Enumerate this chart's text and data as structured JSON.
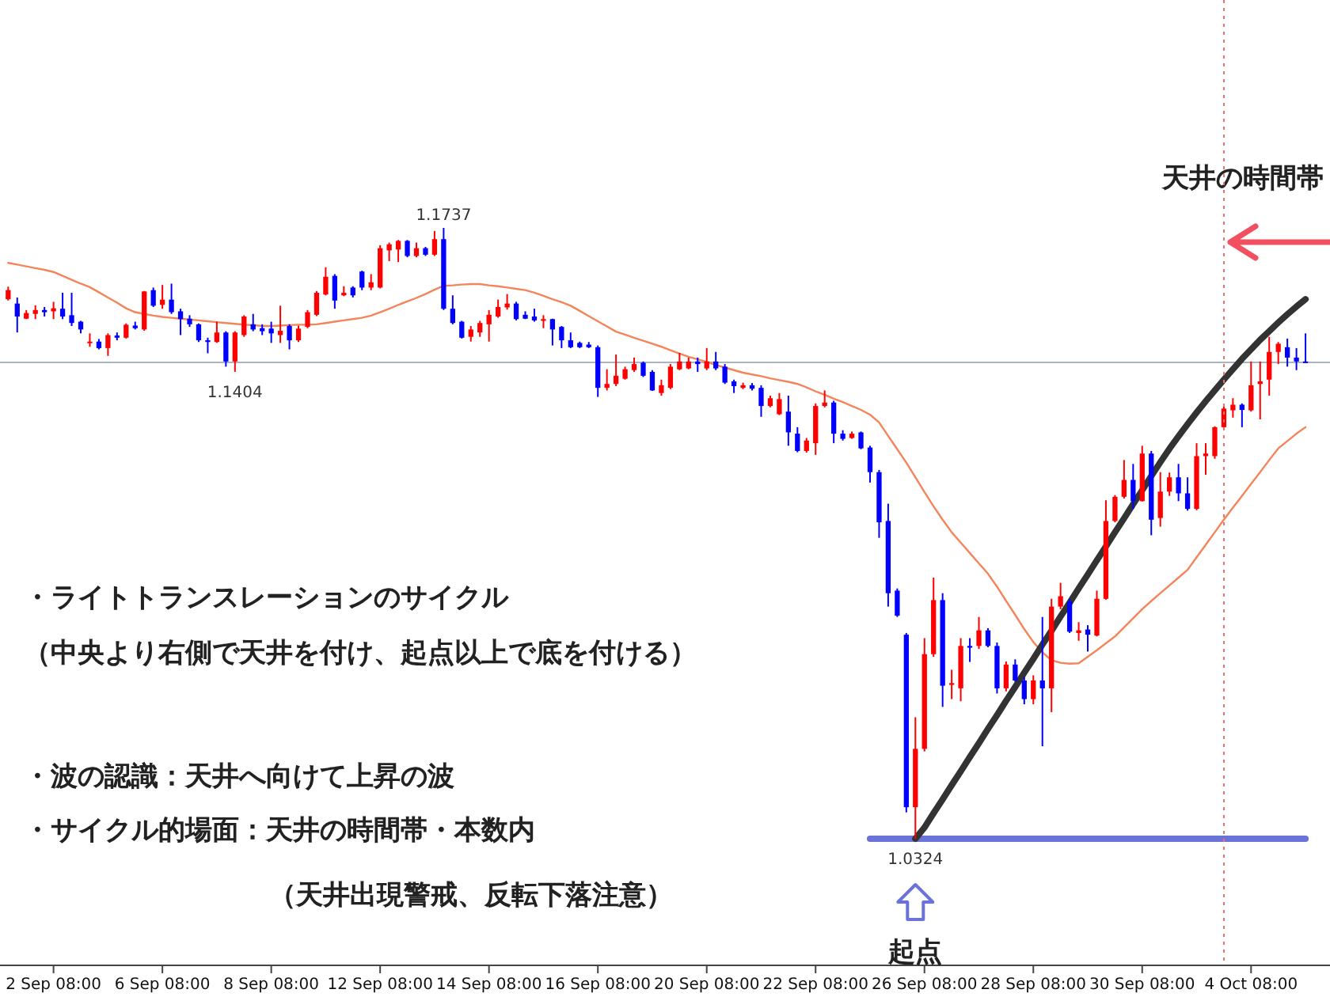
{
  "chart_data": {
    "type": "candlestick",
    "categories": [
      null,
      null,
      null,
      null,
      null,
      "2 Sep 08:00",
      null,
      null,
      null,
      null,
      null,
      null,
      null,
      null,
      null,
      null,
      null,
      "6 Sep 08:00",
      null,
      null,
      null,
      null,
      null,
      null,
      null,
      null,
      null,
      null,
      null,
      "8 Sep 08:00",
      null,
      null,
      null,
      null,
      null,
      null,
      null,
      null,
      null,
      null,
      null,
      "12 Sep 08:00",
      null,
      null,
      null,
      null,
      null,
      null,
      null,
      null,
      null,
      null,
      null,
      "14 Sep 08:00",
      null,
      null,
      null,
      null,
      null,
      null,
      null,
      null,
      null,
      null,
      null,
      "16 Sep 08:00",
      null,
      null,
      null,
      null,
      null,
      null,
      null,
      null,
      null,
      null,
      null,
      "20 Sep 08:00",
      null,
      null,
      null,
      null,
      null,
      null,
      null,
      null,
      null,
      null,
      null,
      "22 Sep 08:00",
      null,
      null,
      null,
      null,
      null,
      null,
      null,
      null,
      null,
      null,
      null,
      "26 Sep 08:00",
      null,
      null,
      null,
      null,
      null,
      null,
      null,
      null,
      null,
      null,
      null,
      "28 Sep 08:00",
      null,
      null,
      null,
      null,
      null,
      null,
      null,
      null,
      null,
      null,
      null,
      "30 Sep 08:00",
      null,
      null,
      null,
      null,
      null,
      null,
      null,
      null,
      null,
      null,
      null,
      "4 Oct 08:00",
      null,
      null,
      null,
      null,
      null,
      null
    ],
    "ohlc": [
      [
        1.1572,
        1.1601,
        1.1569,
        1.1593
      ],
      [
        1.1562,
        1.1576,
        1.1495,
        1.1532
      ],
      [
        1.1527,
        1.1547,
        1.1526,
        1.154
      ],
      [
        1.1538,
        1.1558,
        1.1526,
        1.1547
      ],
      [
        1.1547,
        1.1554,
        1.1532,
        1.1542
      ],
      [
        1.1544,
        1.1566,
        1.1526,
        1.1551
      ],
      [
        1.155,
        1.1587,
        1.1526,
        1.1532
      ],
      [
        1.1535,
        1.1587,
        1.151,
        1.1517
      ],
      [
        1.152,
        1.1522,
        1.1493,
        1.1502
      ],
      [
        1.1471,
        1.1493,
        1.1462,
        1.1474
      ],
      [
        1.1474,
        1.148,
        1.1456,
        1.1459
      ],
      [
        1.1459,
        1.1493,
        1.1441,
        1.1489
      ],
      [
        1.1488,
        1.1495,
        1.1477,
        1.1483
      ],
      [
        1.1483,
        1.1516,
        1.1481,
        1.1513
      ],
      [
        1.1511,
        1.152,
        1.1502,
        1.1505
      ],
      [
        1.1502,
        1.1591,
        1.1499,
        1.159
      ],
      [
        1.1593,
        1.1599,
        1.1554,
        1.1557
      ],
      [
        1.1559,
        1.1605,
        1.155,
        1.1571
      ],
      [
        1.1571,
        1.1608,
        1.1538,
        1.1542
      ],
      [
        1.1544,
        1.155,
        1.1489,
        1.1526
      ],
      [
        1.1527,
        1.1535,
        1.1508,
        1.1514
      ],
      [
        1.1514,
        1.1516,
        1.1473,
        1.1477
      ],
      [
        1.1477,
        1.1483,
        1.1447,
        1.1473
      ],
      [
        1.1473,
        1.152,
        1.1471,
        1.1495
      ],
      [
        1.1495,
        1.1498,
        1.1416,
        1.1428
      ],
      [
        1.1428,
        1.1498,
        1.1404,
        1.1495
      ],
      [
        1.1489,
        1.1535,
        1.1485,
        1.1532
      ],
      [
        1.1514,
        1.1538,
        1.1498,
        1.1502
      ],
      [
        1.1505,
        1.1514,
        1.1489,
        1.1498
      ],
      [
        1.1504,
        1.152,
        1.1471,
        1.1493
      ],
      [
        1.1489,
        1.1557,
        1.1471,
        1.1499
      ],
      [
        1.151,
        1.1514,
        1.1456,
        1.1477
      ],
      [
        1.1477,
        1.1511,
        1.1473,
        1.1504
      ],
      [
        1.1508,
        1.1547,
        1.1505,
        1.1542
      ],
      [
        1.1536,
        1.1591,
        1.1533,
        1.1587
      ],
      [
        1.1583,
        1.1646,
        1.1581,
        1.1624
      ],
      [
        1.1626,
        1.163,
        1.155,
        1.1569
      ],
      [
        1.1581,
        1.1602,
        1.1579,
        1.1587
      ],
      [
        1.1599,
        1.1602,
        1.1576,
        1.1581
      ],
      [
        1.1636,
        1.1638,
        1.1593,
        1.1599
      ],
      [
        1.1599,
        1.163,
        1.1593,
        1.1611
      ],
      [
        1.1599,
        1.1697,
        1.1597,
        1.169
      ],
      [
        1.1685,
        1.1703,
        1.166,
        1.1699
      ],
      [
        1.1687,
        1.1709,
        1.1658,
        1.1707
      ],
      [
        1.1707,
        1.1709,
        1.1669,
        1.1672
      ],
      [
        1.1672,
        1.1703,
        1.1669,
        1.169
      ],
      [
        1.169,
        1.1693,
        1.1672,
        1.1675
      ],
      [
        1.1675,
        1.173,
        1.1672,
        1.1711
      ],
      [
        1.1711,
        1.1737,
        1.1547,
        1.155
      ],
      [
        1.155,
        1.1581,
        1.1514,
        1.1517
      ],
      [
        1.152,
        1.1522,
        1.1481,
        1.1483
      ],
      [
        1.1485,
        1.151,
        1.1474,
        1.1502
      ],
      [
        1.1495,
        1.1522,
        1.1485,
        1.1517
      ],
      [
        1.1514,
        1.1547,
        1.1474,
        1.1536
      ],
      [
        1.1532,
        1.1571,
        1.1529,
        1.1554
      ],
      [
        1.1553,
        1.1584,
        1.1548,
        1.1562
      ],
      [
        1.1562,
        1.1566,
        1.1523,
        1.1526
      ],
      [
        1.1536,
        1.1544,
        1.1526,
        1.1527
      ],
      [
        1.1532,
        1.155,
        1.152,
        1.1523
      ],
      [
        1.1522,
        1.1535,
        1.1505,
        1.1526
      ],
      [
        1.1526,
        1.1527,
        1.1465,
        1.1502
      ],
      [
        1.1508,
        1.151,
        1.1459,
        1.1477
      ],
      [
        1.1477,
        1.1495,
        1.1459,
        1.1461
      ],
      [
        1.1471,
        1.1474,
        1.1459,
        1.1461
      ],
      [
        1.1467,
        1.1473,
        1.1459,
        1.1461
      ],
      [
        1.1461,
        1.1465,
        1.1346,
        1.1367
      ],
      [
        1.1367,
        1.141,
        1.1361,
        1.1376
      ],
      [
        1.1376,
        1.1444,
        1.1371,
        1.1395
      ],
      [
        1.1388,
        1.1416,
        1.1386,
        1.141
      ],
      [
        1.1408,
        1.1437,
        1.1404,
        1.1422
      ],
      [
        1.1425,
        1.1428,
        1.1392,
        1.1395
      ],
      [
        1.1404,
        1.1408,
        1.136,
        1.1361
      ],
      [
        1.1355,
        1.1386,
        1.1349,
        1.1373
      ],
      [
        1.1367,
        1.1422,
        1.1364,
        1.1416
      ],
      [
        1.141,
        1.1448,
        1.1408,
        1.1428
      ],
      [
        1.1412,
        1.1437,
        1.141,
        1.1428
      ],
      [
        1.1428,
        1.1437,
        1.1404,
        1.1422
      ],
      [
        1.1412,
        1.1459,
        1.1408,
        1.1428
      ],
      [
        1.1428,
        1.145,
        1.1408,
        1.1412
      ],
      [
        1.1416,
        1.1422,
        1.1376,
        1.1379
      ],
      [
        1.1382,
        1.1386,
        1.1355,
        1.1371
      ],
      [
        1.1367,
        1.1379,
        1.1364,
        1.1373
      ],
      [
        1.1373,
        1.1378,
        1.1361,
        1.1365
      ],
      [
        1.1367,
        1.1373,
        1.13,
        1.1325
      ],
      [
        1.1325,
        1.1349,
        1.1322,
        1.1343
      ],
      [
        1.1306,
        1.1355,
        1.1304,
        1.1341
      ],
      [
        1.1312,
        1.1349,
        1.1233,
        1.1264
      ],
      [
        1.1261,
        1.1276,
        1.1218,
        1.1221
      ],
      [
        1.1221,
        1.1251,
        1.1217,
        1.1245
      ],
      [
        1.1239,
        1.1331,
        1.1212,
        1.1325
      ],
      [
        1.1325,
        1.1361,
        1.1322,
        1.1333
      ],
      [
        1.1333,
        1.1337,
        1.1239,
        1.1261
      ],
      [
        1.1261,
        1.1269,
        1.1245,
        1.1249
      ],
      [
        1.1251,
        1.1266,
        1.1249,
        1.1261
      ],
      [
        1.1264,
        1.1266,
        1.1225,
        1.1227
      ],
      [
        1.1229,
        1.1233,
        1.1148,
        1.1172
      ],
      [
        1.1172,
        1.1177,
        1.102,
        1.1056
      ],
      [
        1.1059,
        1.1099,
        1.0861,
        1.0892
      ],
      [
        1.0898,
        1.0903,
        1.0837,
        1.084
      ],
      [
        1.0796,
        1.08,
        1.0385,
        1.0397
      ],
      [
        1.0397,
        1.0605,
        1.0324,
        1.0532
      ],
      [
        1.0532,
        1.0788,
        1.0526,
        1.0751
      ],
      [
        1.0751,
        1.0928,
        1.0745,
        1.0876
      ],
      [
        1.0876,
        1.0892,
        1.0629,
        1.0678
      ],
      [
        1.068,
        1.0715,
        1.0647,
        1.0684
      ],
      [
        1.0672,
        1.0788,
        1.0642,
        1.077
      ],
      [
        1.077,
        1.0788,
        1.0733,
        1.0766
      ],
      [
        1.077,
        1.0837,
        1.0763,
        1.0806
      ],
      [
        1.0806,
        1.0811,
        1.0767,
        1.077
      ],
      [
        1.077,
        1.0778,
        1.066,
        1.0672
      ],
      [
        1.0672,
        1.0734,
        1.0665,
        1.0727
      ],
      [
        1.0727,
        1.0739,
        1.0687,
        1.069
      ],
      [
        1.069,
        1.0698,
        1.0635,
        1.0647
      ],
      [
        1.0647,
        1.0702,
        1.0635,
        1.069
      ],
      [
        1.069,
        1.0837,
        1.0538,
        1.0672
      ],
      [
        1.0672,
        1.0879,
        1.0617,
        1.0861
      ],
      [
        1.0861,
        1.0916,
        1.0855,
        1.0885
      ],
      [
        1.0873,
        1.0879,
        1.08,
        1.0803
      ],
      [
        1.08,
        1.0825,
        1.0782,
        1.0806
      ],
      [
        1.0808,
        1.0818,
        1.0757,
        1.0796
      ],
      [
        1.0794,
        1.0898,
        1.0792,
        1.0879
      ],
      [
        1.0879,
        1.1107,
        1.0877,
        1.1059
      ],
      [
        1.1059,
        1.1119,
        1.1056,
        1.1115
      ],
      [
        1.1115,
        1.12,
        1.1111,
        1.1154
      ],
      [
        1.1154,
        1.1191,
        1.1087,
        1.1105
      ],
      [
        1.1105,
        1.1233,
        1.1104,
        1.1215
      ],
      [
        1.1215,
        1.1221,
        1.1026,
        1.1062
      ],
      [
        1.1066,
        1.1172,
        1.1046,
        1.1127
      ],
      [
        1.1127,
        1.1171,
        1.1117,
        1.116
      ],
      [
        1.116,
        1.1191,
        1.1105,
        1.1123
      ],
      [
        1.1123,
        1.116,
        1.1083,
        1.1087
      ],
      [
        1.1087,
        1.1239,
        1.1084,
        1.1209
      ],
      [
        1.1209,
        1.1239,
        1.1166,
        1.1215
      ],
      [
        1.1209,
        1.1278,
        1.1203,
        1.1276
      ],
      [
        1.1276,
        1.1325,
        1.127,
        1.1319
      ],
      [
        1.1315,
        1.1343,
        1.1298,
        1.1328
      ],
      [
        1.1328,
        1.1331,
        1.1276,
        1.1316
      ],
      [
        1.1315,
        1.1428,
        1.1312,
        1.1373
      ],
      [
        1.1376,
        1.1428,
        1.1294,
        1.1382
      ],
      [
        1.1386,
        1.1485,
        1.1349,
        1.145
      ],
      [
        1.145,
        1.1473,
        1.1422,
        1.1469
      ],
      [
        1.1461,
        1.1481,
        1.1416,
        1.1437
      ],
      [
        1.1437,
        1.1459,
        1.1408,
        1.1428
      ],
      [
        1.1428,
        1.1493,
        1.1425,
        1.1425
      ]
    ],
    "colors": [
      "#ff0000",
      "#0000ff",
      "#ff0000",
      "#ff0000",
      "#0000ff",
      "#ff0000",
      "#0000ff",
      "#0000ff",
      "#0000ff",
      "#ff0000",
      "#0000ff",
      "#ff0000",
      "#0000ff",
      "#ff0000",
      "#0000ff",
      "#ff0000",
      "#0000ff",
      "#ff0000",
      "#0000ff",
      "#0000ff",
      "#0000ff",
      "#0000ff",
      "#0000ff",
      "#ff0000",
      "#0000ff",
      "#ff0000",
      "#ff0000",
      "#0000ff",
      "#0000ff",
      "#0000ff",
      "#ff0000",
      "#0000ff",
      "#ff0000",
      "#ff0000",
      "#ff0000",
      "#ff0000",
      "#0000ff",
      "#ff0000",
      "#0000ff",
      "#0000ff",
      "#ff0000",
      "#ff0000",
      "#ff0000",
      "#ff0000",
      "#0000ff",
      "#ff0000",
      "#0000ff",
      "#ff0000",
      "#0000ff",
      "#0000ff",
      "#0000ff",
      "#ff0000",
      "#ff0000",
      "#ff0000",
      "#ff0000",
      "#ff0000",
      "#0000ff",
      "#0000ff",
      "#0000ff",
      "#ff0000",
      "#0000ff",
      "#0000ff",
      "#0000ff",
      "#0000ff",
      "#0000ff",
      "#0000ff",
      "#ff0000",
      "#ff0000",
      "#ff0000",
      "#ff0000",
      "#0000ff",
      "#0000ff",
      "#ff0000",
      "#ff0000",
      "#ff0000",
      "#ff0000",
      "#0000ff",
      "#ff0000",
      "#0000ff",
      "#0000ff",
      "#0000ff",
      "#ff0000",
      "#0000ff",
      "#0000ff",
      "#ff0000",
      "#ff0000",
      "#0000ff",
      "#0000ff",
      "#ff0000",
      "#ff0000",
      "#ff0000",
      "#0000ff",
      "#0000ff",
      "#ff0000",
      "#0000ff",
      "#0000ff",
      "#0000ff",
      "#0000ff",
      "#0000ff",
      "#0000ff",
      "#ff0000",
      "#ff0000",
      "#ff0000",
      "#0000ff",
      "#ff0000",
      "#ff0000",
      "#0000ff",
      "#ff0000",
      "#0000ff",
      "#0000ff",
      "#ff0000",
      "#0000ff",
      "#0000ff",
      "#ff0000",
      "#0000ff",
      "#ff0000",
      "#ff0000",
      "#0000ff",
      "#ff0000",
      "#0000ff",
      "#ff0000",
      "#ff0000",
      "#ff0000",
      "#ff0000",
      "#0000ff",
      "#ff0000",
      "#0000ff",
      "#ff0000",
      "#ff0000",
      "#0000ff",
      "#0000ff",
      "#ff0000",
      "#ff0000",
      "#ff0000",
      "#ff0000",
      "#ff0000",
      "#0000ff",
      "#ff0000",
      "#ff0000",
      "#ff0000",
      "#ff0000",
      "#0000ff",
      "#0000ff",
      "#0000ff"
    ],
    "series": [
      {
        "type": "line",
        "color": "#f4845a",
        "values": [
          1.1656,
          1.1652,
          1.1648,
          1.1644,
          1.164,
          1.1635,
          1.1626,
          1.1617,
          1.1608,
          1.16,
          1.1588,
          1.1576,
          1.1564,
          1.1551,
          1.1542,
          1.1538,
          1.1534,
          1.1531,
          1.1529,
          1.1527,
          1.1525,
          1.1523,
          1.1521,
          1.1519,
          1.1517,
          1.1515,
          1.1513,
          1.1512,
          1.151,
          1.151,
          1.1511,
          1.1512,
          1.1513,
          1.1513,
          1.1514,
          1.1517,
          1.152,
          1.1523,
          1.1526,
          1.1529,
          1.1534,
          1.1542,
          1.155,
          1.1559,
          1.1567,
          1.1575,
          1.1584,
          1.1594,
          1.1603,
          1.1604,
          1.1606,
          1.1607,
          1.1607,
          1.1604,
          1.1602,
          1.1599,
          1.1596,
          1.1593,
          1.1587,
          1.158,
          1.1572,
          1.1565,
          1.1557,
          1.1545,
          1.1533,
          1.1521,
          1.1509,
          1.1497,
          1.149,
          1.1483,
          1.1476,
          1.1469,
          1.1462,
          1.1454,
          1.1446,
          1.1439,
          1.1433,
          1.1427,
          1.142,
          1.1414,
          1.1408,
          1.1402,
          1.1398,
          1.1394,
          1.1389,
          1.1385,
          1.1381,
          1.1376,
          1.1368,
          1.1359,
          1.1351,
          1.1342,
          1.1334,
          1.1325,
          1.1316,
          1.1305,
          1.1287,
          1.1256,
          1.1225,
          1.1194,
          1.116,
          1.1126,
          1.1093,
          1.1062,
          1.1033,
          1.1009,
          1.0985,
          1.0961,
          1.0937,
          1.0907,
          1.0874,
          1.0842,
          1.0809,
          1.0779,
          1.0755,
          1.0737,
          1.0731,
          1.0729,
          1.073,
          1.0745,
          1.076,
          1.0776,
          1.0792,
          1.0813,
          1.0834,
          1.0855,
          1.0874,
          1.0892,
          1.091,
          1.0928,
          1.0946,
          1.0975,
          1.1004,
          1.1033,
          1.1062,
          1.109,
          1.1117,
          1.1145,
          1.1172,
          1.12,
          1.1227,
          1.1244,
          1.1261,
          1.1276
        ]
      },
      {
        "type": "line",
        "color": "#6b72d8",
        "values": [
          null,
          null,
          null,
          null,
          null,
          null,
          null,
          null,
          null,
          null,
          null,
          null,
          null,
          null,
          null,
          null,
          null,
          null,
          null,
          null,
          null,
          null,
          null,
          null,
          null,
          null,
          null,
          null,
          null,
          null,
          null,
          null,
          null,
          null,
          null,
          null,
          null,
          null,
          null,
          null,
          null,
          null,
          null,
          null,
          null,
          null,
          null,
          null,
          null,
          null,
          null,
          null,
          null,
          null,
          null,
          null,
          null,
          null,
          null,
          null,
          null,
          null,
          null,
          null,
          null,
          null,
          null,
          null,
          null,
          null,
          null,
          null,
          null,
          null,
          null,
          null,
          null,
          null,
          null,
          null,
          null,
          null,
          null,
          null,
          null,
          null,
          null,
          null,
          null,
          null,
          null,
          null,
          null,
          null,
          null,
          1.0324,
          1.0324,
          1.0324,
          1.0324,
          1.0324,
          1.0324,
          1.0324,
          1.0324,
          1.0324,
          1.0324,
          1.0324,
          1.0324,
          1.0324,
          1.0324,
          1.0324,
          1.0324,
          1.0324,
          1.0324,
          1.0324,
          1.0324,
          1.0324,
          1.0324,
          1.0324,
          1.0324,
          1.0324,
          1.0324,
          1.0324,
          1.0324,
          1.0324,
          1.0324,
          1.0324,
          1.0324,
          1.0324,
          1.0324,
          1.0324,
          1.0324,
          1.0324,
          1.0324,
          1.0324,
          1.0324,
          1.0324,
          1.0324,
          1.0324,
          1.0324,
          1.0324,
          1.0324,
          1.0324,
          1.0324,
          1.0324
        ]
      },
      {
        "type": "line",
        "color": "#333333",
        "values": [
          null,
          null,
          null,
          null,
          null,
          null,
          null,
          null,
          null,
          null,
          null,
          null,
          null,
          null,
          null,
          null,
          null,
          null,
          null,
          null,
          null,
          null,
          null,
          null,
          null,
          null,
          null,
          null,
          null,
          null,
          null,
          null,
          null,
          null,
          null,
          null,
          null,
          null,
          null,
          null,
          null,
          null,
          null,
          null,
          null,
          null,
          null,
          null,
          null,
          null,
          null,
          null,
          null,
          null,
          null,
          null,
          null,
          null,
          null,
          null,
          null,
          null,
          null,
          null,
          null,
          null,
          null,
          null,
          null,
          null,
          null,
          null,
          null,
          null,
          null,
          null,
          null,
          null,
          null,
          null,
          null,
          null,
          null,
          null,
          null,
          null,
          null,
          null,
          null,
          null,
          null,
          null,
          null,
          null,
          null,
          null,
          null,
          null,
          null,
          null,
          1.0324,
          1.035,
          1.0383,
          1.0415,
          1.0448,
          1.048,
          1.0513,
          1.0545,
          1.0578,
          1.061,
          1.0643,
          1.0675,
          1.0708,
          1.074,
          1.0773,
          1.0805,
          1.0838,
          1.087,
          1.0903,
          1.0935,
          1.0968,
          1.1,
          1.1033,
          1.1065,
          1.1098,
          1.113,
          1.1163,
          1.1195,
          1.1226,
          1.1255,
          1.1283,
          1.131,
          1.1336,
          1.1361,
          1.1386,
          1.141,
          1.1434,
          1.1456,
          1.1478,
          1.1498,
          1.1518,
          1.1537,
          1.1555,
          1.1572
        ]
      }
    ],
    "ref_lines": [
      {
        "axis": "y",
        "value": 1.1426,
        "color": "#a8b4c4"
      }
    ],
    "annotations": [
      "天井の時間帯",
      "・ライトトランスレーションのサイクル",
      "（中央より右側で天井を付け、起点以上で底を付ける）",
      "・波の認識：天井へ向けて上昇の波",
      "・サイクル的場面：天井の時間帯・本数内",
      "（天井出現警戒、反転下落注意）",
      "起点",
      {
        "text": "1.1737",
        "y": 1.1737
      },
      {
        "text": "1.1404",
        "y": 1.1404
      },
      {
        "text": "1.0324",
        "y": 1.0324
      }
    ],
    "tick_labels": "x",
    "grid": false
  }
}
